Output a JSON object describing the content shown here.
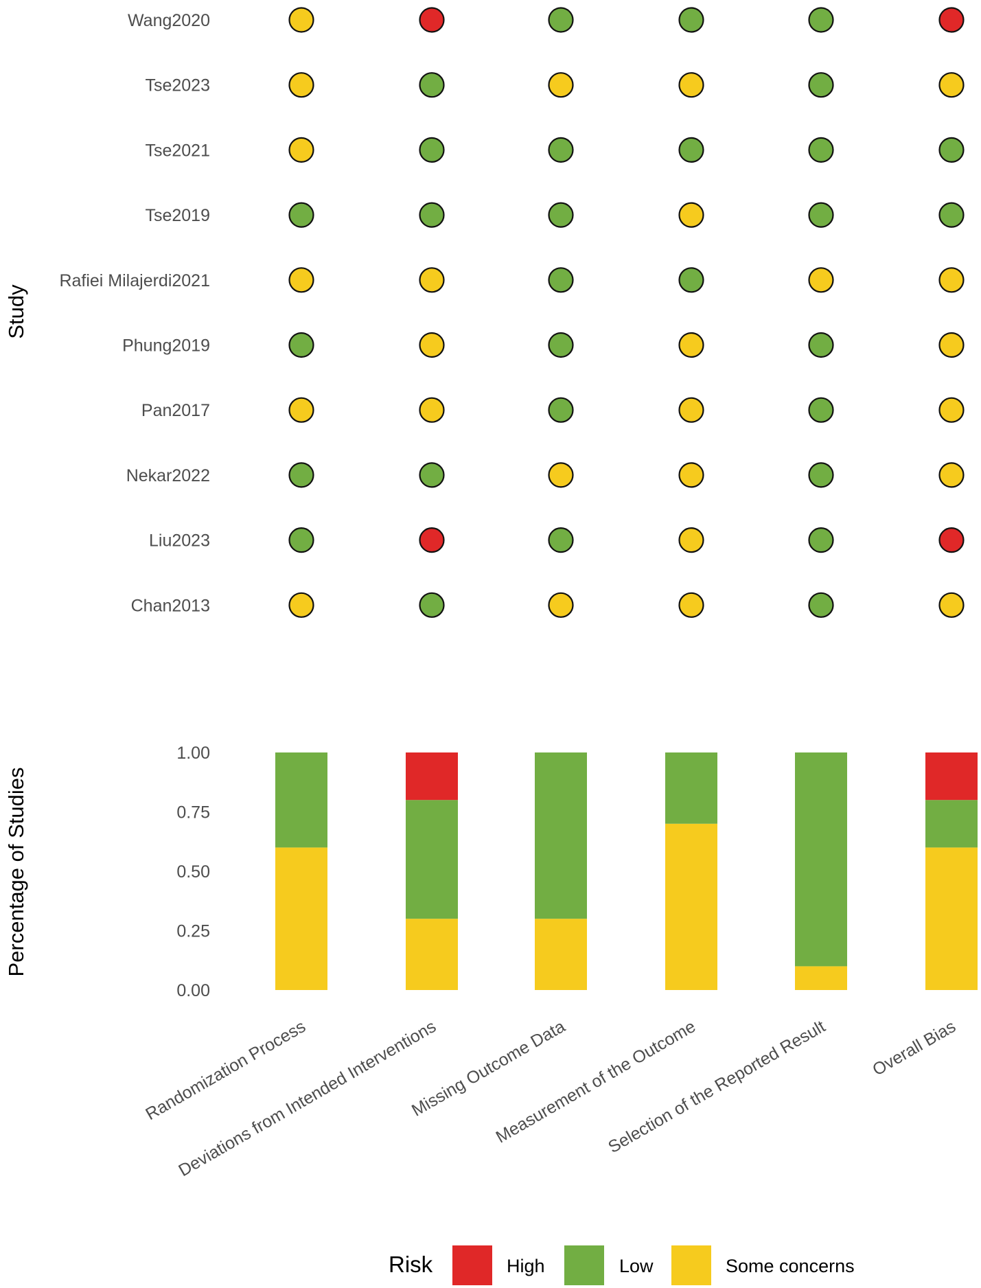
{
  "chart_data": [
    {
      "type": "scatter",
      "title": "",
      "ylabel": "Study",
      "domains": [
        "Randomization Process",
        "Deviations from Intended Interventions",
        "Missing Outcome Data",
        "Measurement of the Outcome",
        "Selection of the Reported Result",
        "Overall Bias"
      ],
      "studies": [
        {
          "name": "Wang2020",
          "ratings": [
            "Some concerns",
            "High",
            "Low",
            "Low",
            "Low",
            "High"
          ]
        },
        {
          "name": "Tse2023",
          "ratings": [
            "Some concerns",
            "Low",
            "Some concerns",
            "Some concerns",
            "Low",
            "Some concerns"
          ]
        },
        {
          "name": "Tse2021",
          "ratings": [
            "Some concerns",
            "Low",
            "Low",
            "Low",
            "Low",
            "Low"
          ]
        },
        {
          "name": "Tse2019",
          "ratings": [
            "Low",
            "Low",
            "Low",
            "Some concerns",
            "Low",
            "Low"
          ]
        },
        {
          "name": "Rafiei Milajerdi2021",
          "ratings": [
            "Some concerns",
            "Some concerns",
            "Low",
            "Low",
            "Some concerns",
            "Some concerns"
          ]
        },
        {
          "name": "Phung2019",
          "ratings": [
            "Low",
            "Some concerns",
            "Low",
            "Some concerns",
            "Low",
            "Some concerns"
          ]
        },
        {
          "name": "Pan2017",
          "ratings": [
            "Some concerns",
            "Some concerns",
            "Low",
            "Some concerns",
            "Low",
            "Some concerns"
          ]
        },
        {
          "name": "Nekar2022",
          "ratings": [
            "Low",
            "Low",
            "Some concerns",
            "Some concerns",
            "Low",
            "Some concerns"
          ]
        },
        {
          "name": "Liu2023",
          "ratings": [
            "Low",
            "High",
            "Low",
            "Some concerns",
            "Low",
            "High"
          ]
        },
        {
          "name": "Chan2013",
          "ratings": [
            "Some concerns",
            "Low",
            "Some concerns",
            "Some concerns",
            "Low",
            "Some concerns"
          ]
        }
      ]
    },
    {
      "type": "bar",
      "stacked": true,
      "ylabel": "Percentage of Studies",
      "xlabel": "",
      "ylim": [
        0,
        1
      ],
      "yticks": [
        "0.00",
        "0.25",
        "0.50",
        "0.75",
        "1.00"
      ],
      "categories": [
        "Randomization Process",
        "Deviations from Intended Interventions",
        "Missing Outcome Data",
        "Measurement of the Outcome",
        "Selection of the Reported Result",
        "Overall Bias"
      ],
      "series": [
        {
          "name": "Some concerns",
          "values": [
            0.6,
            0.3,
            0.3,
            0.7,
            0.1,
            0.6
          ]
        },
        {
          "name": "Low",
          "values": [
            0.4,
            0.5,
            0.7,
            0.3,
            0.9,
            0.2
          ]
        },
        {
          "name": "High",
          "values": [
            0,
            0.2,
            0,
            0,
            0,
            0.2
          ]
        }
      ]
    }
  ],
  "legend": {
    "title": "Risk",
    "position": "bottom",
    "items": [
      {
        "label": "High",
        "color": "#E02828"
      },
      {
        "label": "Low",
        "color": "#72AE43"
      },
      {
        "label": "Some concerns",
        "color": "#F6CB1E"
      }
    ]
  }
}
